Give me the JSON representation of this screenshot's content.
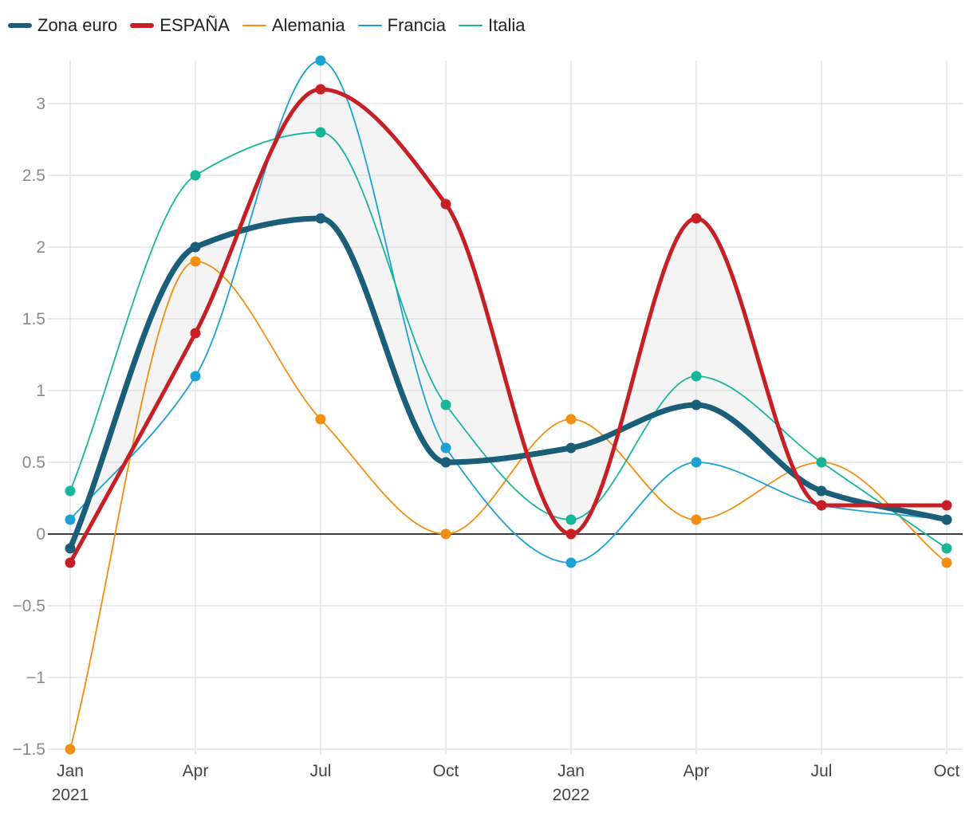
{
  "chart_data": {
    "type": "line",
    "title": "",
    "xlabel": "",
    "ylabel": "",
    "x": [
      "Jan 2021",
      "Apr 2021",
      "Jul 2021",
      "Oct 2021",
      "Jan 2022",
      "Apr 2022",
      "Jul 2022",
      "Oct 2022"
    ],
    "x_ticks": [
      {
        "label": "Jan",
        "year": "2021"
      },
      {
        "label": "Apr",
        "year": ""
      },
      {
        "label": "Jul",
        "year": ""
      },
      {
        "label": "Oct",
        "year": ""
      },
      {
        "label": "Jan",
        "year": "2022"
      },
      {
        "label": "Apr",
        "year": ""
      },
      {
        "label": "Jul",
        "year": ""
      },
      {
        "label": "Oct",
        "year": ""
      }
    ],
    "ylim": [
      -1.5,
      3.3
    ],
    "y_ticks": [
      {
        "value": -1.5,
        "label": "−1.5"
      },
      {
        "value": -1,
        "label": "−1"
      },
      {
        "value": -0.5,
        "label": "−0.5"
      },
      {
        "value": 0,
        "label": "0"
      },
      {
        "value": 0.5,
        "label": "0.5"
      },
      {
        "value": 1,
        "label": "1"
      },
      {
        "value": 1.5,
        "label": "1.5"
      },
      {
        "value": 2,
        "label": "2"
      },
      {
        "value": 2.5,
        "label": "2.5"
      },
      {
        "value": 3,
        "label": "3"
      }
    ],
    "grid": true,
    "legend_position": "top-left",
    "shaded_between": [
      "Zona euro",
      "ESPAÑA"
    ],
    "series": [
      {
        "name": "Zona euro",
        "color": "#1b5e7a",
        "values": [
          -0.1,
          2.0,
          2.2,
          0.5,
          0.6,
          0.9,
          0.3,
          0.1
        ],
        "weight": "thick"
      },
      {
        "name": "ESPAÑA",
        "color": "#c62026",
        "values": [
          -0.2,
          1.4,
          3.1,
          2.3,
          0.0,
          2.2,
          0.2,
          0.2
        ],
        "weight": "thick"
      },
      {
        "name": "Alemania",
        "color": "#f28e10",
        "values": [
          -1.5,
          1.9,
          0.8,
          0.0,
          0.8,
          0.1,
          0.5,
          -0.2
        ],
        "weight": "thin"
      },
      {
        "name": "Francia",
        "color": "#1ba1d3",
        "values": [
          0.1,
          1.1,
          3.3,
          0.6,
          -0.2,
          0.5,
          0.2,
          0.1
        ],
        "weight": "thin"
      },
      {
        "name": "Italia",
        "color": "#17b59a",
        "values": [
          0.3,
          2.5,
          2.8,
          0.9,
          0.1,
          1.1,
          0.5,
          -0.1
        ],
        "weight": "thin"
      }
    ]
  }
}
